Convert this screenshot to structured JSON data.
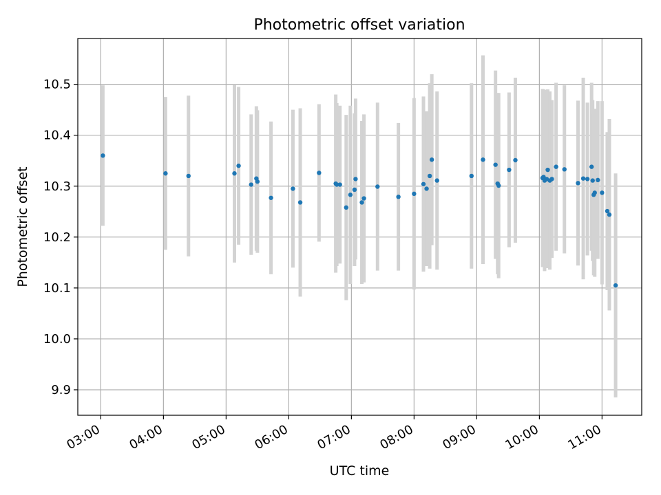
{
  "chart_data": {
    "type": "scatter",
    "title": "Photometric offset variation",
    "xlabel": "UTC time",
    "ylabel": "Photometric offset",
    "xlim": [
      "02:38",
      "11:38"
    ],
    "ylim": [
      9.85,
      10.59
    ],
    "x_ticks": [
      "03:00",
      "04:00",
      "05:00",
      "06:00",
      "07:00",
      "08:00",
      "09:00",
      "10:00",
      "11:00"
    ],
    "y_ticks": [
      "9.9",
      "10.0",
      "10.1",
      "10.2",
      "10.3",
      "10.4",
      "10.5"
    ],
    "grid": true,
    "colors": {
      "points": "#1f77b4",
      "errorbars": "#d3d3d3",
      "grid": "#b0b0b0"
    },
    "series": [
      {
        "marker": "point",
        "x": [
          "03:02",
          "04:02",
          "04:24",
          "05:08",
          "05:12",
          "05:24",
          "05:29",
          "05:30",
          "05:43",
          "06:04",
          "06:11",
          "06:29",
          "06:45",
          "06:46",
          "06:49",
          "06:55",
          "06:59",
          "07:03",
          "07:04",
          "07:10",
          "07:12",
          "07:25",
          "07:45",
          "08:00",
          "08:09",
          "08:12",
          "08:15",
          "08:17",
          "08:22",
          "08:55",
          "09:06",
          "09:18",
          "09:20",
          "09:21",
          "09:31",
          "09:37",
          "10:03",
          "10:04",
          "10:05",
          "10:07",
          "10:08",
          "10:10",
          "10:12",
          "10:16",
          "10:24",
          "10:37",
          "10:42",
          "10:46",
          "10:50",
          "10:51",
          "10:52",
          "10:53",
          "10:56",
          "11:00",
          "11:05",
          "11:07",
          "11:13"
        ],
        "y": [
          10.36,
          10.325,
          10.32,
          10.325,
          10.34,
          10.303,
          10.315,
          10.309,
          10.277,
          10.295,
          10.268,
          10.326,
          10.305,
          10.303,
          10.303,
          10.258,
          10.283,
          10.293,
          10.314,
          10.268,
          10.276,
          10.299,
          10.279,
          10.285,
          10.304,
          10.295,
          10.32,
          10.352,
          10.311,
          10.32,
          10.352,
          10.342,
          10.305,
          10.301,
          10.332,
          10.351,
          10.316,
          10.318,
          10.311,
          10.314,
          10.332,
          10.311,
          10.314,
          10.338,
          10.333,
          10.306,
          10.315,
          10.314,
          10.338,
          10.311,
          10.283,
          10.287,
          10.312,
          10.287,
          10.251,
          10.244,
          10.105
        ],
        "err": [
          0.138,
          0.15,
          0.158,
          0.175,
          0.155,
          0.138,
          0.142,
          0.14,
          0.15,
          0.155,
          0.185,
          0.135,
          0.175,
          0.16,
          0.155,
          0.182,
          0.175,
          0.15,
          0.158,
          0.16,
          0.165,
          0.165,
          0.145,
          0.188,
          0.172,
          0.152,
          0.182,
          0.168,
          0.175,
          0.182,
          0.205,
          0.185,
          0.178,
          0.182,
          0.152,
          0.162,
          0.175,
          0.172,
          0.178,
          0.175,
          0.158,
          0.175,
          0.155,
          0.165,
          0.165,
          0.162,
          0.198,
          0.15,
          0.165,
          0.158,
          0.158,
          0.165,
          0.155,
          0.18,
          0.155,
          0.188,
          0.22
        ]
      }
    ]
  }
}
